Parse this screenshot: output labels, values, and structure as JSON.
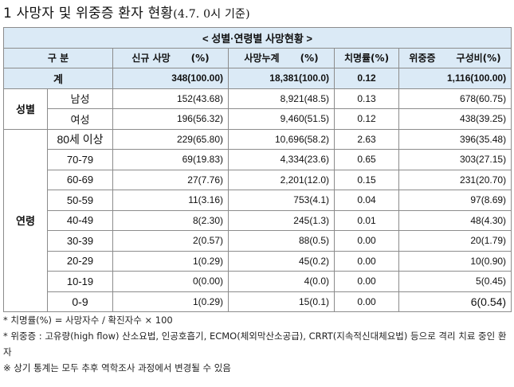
{
  "title": {
    "main": "1 사망자 및 위중증 환자 현황",
    "sub": "(4.7. 0시 기준)"
  },
  "table": {
    "banner": "< 성별·연령별 사망현황 >",
    "header": {
      "category": "구 분",
      "new_deaths": "신규 사망",
      "new_deaths_pct": "(%)",
      "cum_deaths": "사망누계",
      "cum_deaths_pct": "(%)",
      "fatality": "치명률(%)",
      "severe": "위중증",
      "severe_ratio": "구성비(%)"
    },
    "total": {
      "label": "계",
      "new": "348(100.00)",
      "cum": "18,381(100.0)",
      "rate": "0.12",
      "severe": "1,116(100.00)"
    },
    "sex_group": "성별",
    "sex_rows": [
      {
        "label": "남성",
        "new": "152(43.68)",
        "cum": "8,921(48.5)",
        "rate": "0.13",
        "severe": "678(60.75)"
      },
      {
        "label": "여성",
        "new": "196(56.32)",
        "cum": "9,460(51.5)",
        "rate": "0.12",
        "severe": "438(39.25)"
      }
    ],
    "age_group": "연령",
    "age_rows": [
      {
        "label": "80세 이상",
        "new": "229(65.80)",
        "cum": "10,696(58.2)",
        "rate": "2.63",
        "severe": "396(35.48)"
      },
      {
        "label": "70-79",
        "new": "69(19.83)",
        "cum": "4,334(23.6)",
        "rate": "0.65",
        "severe": "303(27.15)"
      },
      {
        "label": "60-69",
        "new": "27(7.76)",
        "cum": "2,201(12.0)",
        "rate": "0.15",
        "severe": "231(20.70)"
      },
      {
        "label": "50-59",
        "new": "11(3.16)",
        "cum": "753(4.1)",
        "rate": "0.04",
        "severe": "97(8.69)"
      },
      {
        "label": "40-49",
        "new": "8(2.30)",
        "cum": "245(1.3)",
        "rate": "0.01",
        "severe": "48(4.30)"
      },
      {
        "label": "30-39",
        "new": "2(0.57)",
        "cum": "88(0.5)",
        "rate": "0.00",
        "severe": "20(1.79)"
      },
      {
        "label": "20-29",
        "new": "1(0.29)",
        "cum": "45(0.2)",
        "rate": "0.00",
        "severe": "10(0.90)"
      },
      {
        "label": "10-19",
        "new": "0(0.00)",
        "cum": "4(0.0)",
        "rate": "0.00",
        "severe": "5(0.45)"
      },
      {
        "label": "0-9",
        "new": "1(0.29)",
        "cum": "15(0.1)",
        "rate": "0.00",
        "severe": "6(0.54)"
      }
    ]
  },
  "notes": [
    "* 치명률(%) = 사망자수 / 확진자수 × 100",
    "* 위중증 : 고유량(high flow) 산소요법, 인공호흡기, ECMO(체외막산소공급), CRRT(지속적신대체요법) 등으로 격리 치료 중인 환자",
    "※ 상기 통계는 모두 추후 역학조사 과정에서 변경될 수 있음"
  ],
  "colors": {
    "header_fill": "#dbeaf6",
    "border": "#8c8c8c"
  }
}
